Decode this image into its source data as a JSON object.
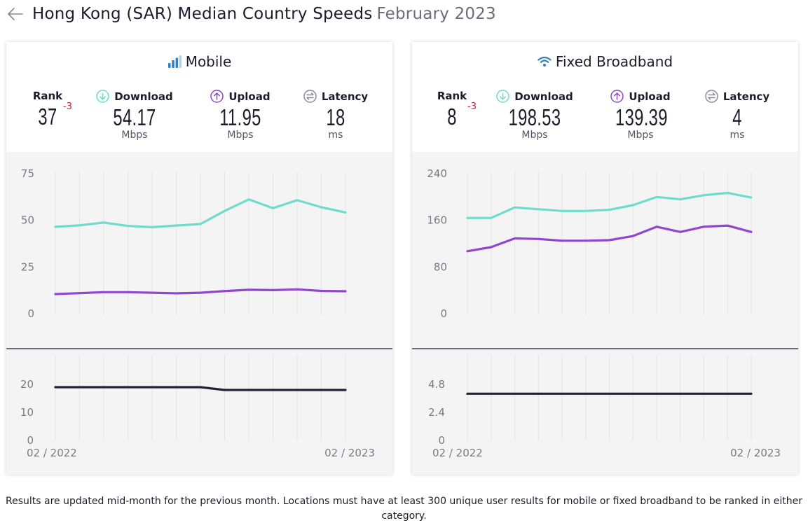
{
  "header": {
    "title": "Hong Kong (SAR) Median Country Speeds",
    "date": "February 2023",
    "back_icon": "arrow-left-icon"
  },
  "mobile": {
    "title": "Mobile",
    "icon": "signal-bars-icon",
    "rank_label": "Rank",
    "rank": "37",
    "rank_change": "-3",
    "download_label": "Download",
    "download": "54.17",
    "download_unit": "Mbps",
    "upload_label": "Upload",
    "upload": "11.95",
    "upload_unit": "Mbps",
    "latency_label": "Latency",
    "latency": "18",
    "latency_unit": "ms"
  },
  "fixed": {
    "title": "Fixed Broadband",
    "icon": "wifi-icon",
    "rank_label": "Rank",
    "rank": "8",
    "rank_change": "-3",
    "download_label": "Download",
    "download": "198.53",
    "download_unit": "Mbps",
    "upload_label": "Upload",
    "upload": "139.39",
    "upload_unit": "Mbps",
    "latency_label": "Latency",
    "latency": "4",
    "latency_unit": "ms"
  },
  "colors": {
    "download": "#6fdccb",
    "upload": "#9146cf",
    "latency": "#22223a",
    "rank_change": "#cc1f3a",
    "mobile_icon": "#2f7fc1",
    "wifi_icon": "#2f7fc1"
  },
  "chart_data": [
    {
      "type": "line",
      "name": "Mobile speeds",
      "x": [
        "02 / 2022",
        "03 / 2022",
        "04 / 2022",
        "05 / 2022",
        "06 / 2022",
        "07 / 2022",
        "08 / 2022",
        "09 / 2022",
        "10 / 2022",
        "11 / 2022",
        "12 / 2022",
        "01 / 2023",
        "02 / 2023"
      ],
      "x_tick_labels": [
        "02 / 2022",
        "02 / 2023"
      ],
      "yticks": [
        0,
        25,
        50,
        75
      ],
      "ylim": [
        0,
        75
      ],
      "series": [
        {
          "name": "Download",
          "values": [
            46.5,
            47.3,
            48.8,
            47.0,
            46.3,
            47.2,
            48.0,
            55.0,
            61.2,
            56.5,
            60.8,
            57.0,
            54.2
          ]
        },
        {
          "name": "Upload",
          "values": [
            10.5,
            11.0,
            11.5,
            11.5,
            11.2,
            10.9,
            11.2,
            12.1,
            12.8,
            12.6,
            13.0,
            12.2,
            12.0
          ]
        }
      ]
    },
    {
      "type": "line",
      "name": "Mobile latency",
      "x": [
        "02 / 2022",
        "03 / 2022",
        "04 / 2022",
        "05 / 2022",
        "06 / 2022",
        "07 / 2022",
        "08 / 2022",
        "09 / 2022",
        "10 / 2022",
        "11 / 2022",
        "12 / 2022",
        "01 / 2023",
        "02 / 2023"
      ],
      "yticks": [
        0,
        10,
        20
      ],
      "ylim": [
        0,
        25
      ],
      "series": [
        {
          "name": "Latency",
          "values": [
            19,
            19,
            19,
            19,
            19,
            19,
            19,
            18,
            18,
            18,
            18,
            18,
            18
          ]
        }
      ]
    },
    {
      "type": "line",
      "name": "Fixed broadband speeds",
      "x": [
        "02 / 2022",
        "03 / 2022",
        "04 / 2022",
        "05 / 2022",
        "06 / 2022",
        "07 / 2022",
        "08 / 2022",
        "09 / 2022",
        "10 / 2022",
        "11 / 2022",
        "12 / 2022",
        "01 / 2023",
        "02 / 2023"
      ],
      "x_tick_labels": [
        "02 / 2022",
        "02 / 2023"
      ],
      "yticks": [
        0,
        80,
        160,
        240
      ],
      "ylim": [
        0,
        240
      ],
      "series": [
        {
          "name": "Download",
          "values": [
            164,
            164,
            182,
            179,
            176,
            176,
            178,
            186,
            200,
            196,
            203,
            207,
            199
          ]
        },
        {
          "name": "Upload",
          "values": [
            107,
            114,
            129,
            128,
            125,
            125,
            126,
            133,
            149,
            140,
            149,
            151,
            140
          ]
        }
      ]
    },
    {
      "type": "line",
      "name": "Fixed broadband latency",
      "x": [
        "02 / 2022",
        "03 / 2022",
        "04 / 2022",
        "05 / 2022",
        "06 / 2022",
        "07 / 2022",
        "08 / 2022",
        "09 / 2022",
        "10 / 2022",
        "11 / 2022",
        "12 / 2022",
        "01 / 2023",
        "02 / 2023"
      ],
      "yticks": [
        0,
        2.4,
        4.8
      ],
      "ylim": [
        0,
        6
      ],
      "series": [
        {
          "name": "Latency",
          "values": [
            4,
            4,
            4,
            4,
            4,
            4,
            4,
            4,
            4,
            4,
            4,
            4,
            4
          ]
        }
      ]
    }
  ],
  "footnote": "Results are updated mid-month for the previous month. Locations must have at least 300 unique user results for mobile or fixed broadband to be ranked in either category."
}
